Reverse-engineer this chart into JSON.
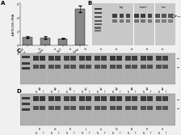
{
  "panel_A": {
    "ylabel": "AATK/18S rRNA",
    "categories": [
      "normal\ntissue",
      "I/Iliana",
      "Gpr1",
      "I.lung"
    ],
    "values": [
      1.1,
      1.05,
      0.95,
      5.2
    ],
    "errors": [
      0.12,
      0.18,
      0.08,
      0.45
    ],
    "bar_color": "#888888",
    "ylim": [
      0,
      6
    ],
    "yticks": [
      0,
      2,
      4,
      6
    ]
  },
  "bg_color": "#f0f0f0",
  "gel_bg": "#aaaaaa",
  "band_dark": "#222222",
  "band_mid": "#444444",
  "band_light": "#666666"
}
